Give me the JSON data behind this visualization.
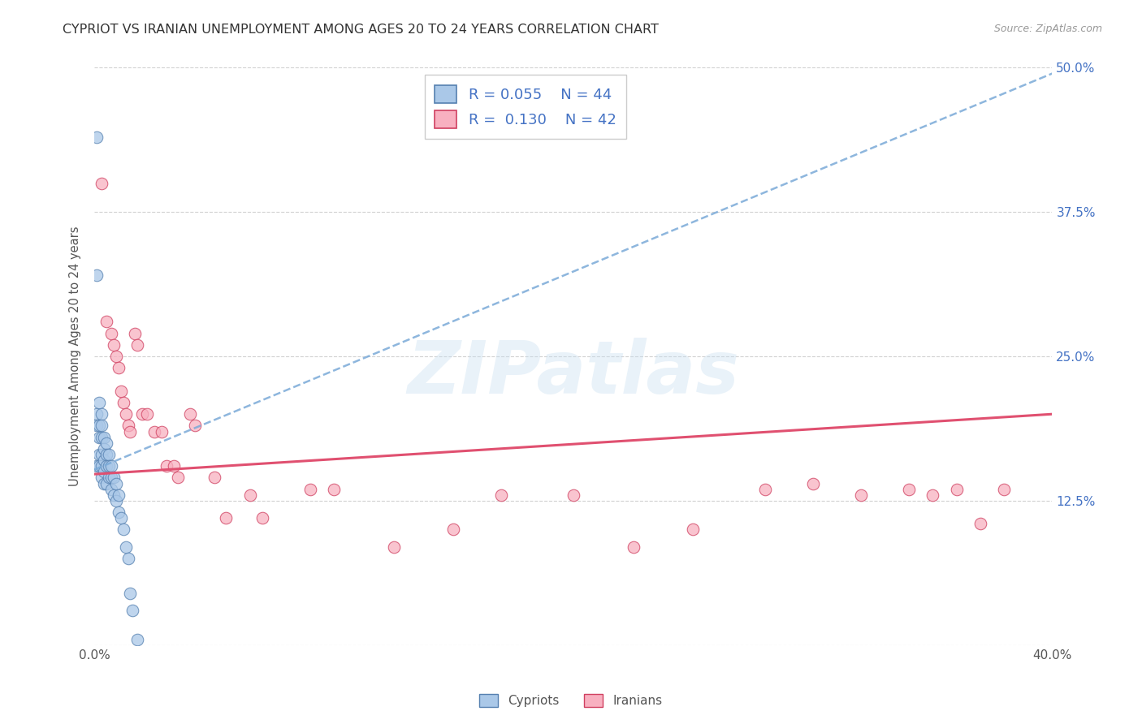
{
  "title": "CYPRIOT VS IRANIAN UNEMPLOYMENT AMONG AGES 20 TO 24 YEARS CORRELATION CHART",
  "source": "Source: ZipAtlas.com",
  "ylabel": "Unemployment Among Ages 20 to 24 years",
  "xlim": [
    0.0,
    0.4
  ],
  "ylim": [
    0.0,
    0.5
  ],
  "xtick_positions": [
    0.0,
    0.05,
    0.1,
    0.15,
    0.2,
    0.25,
    0.3,
    0.35,
    0.4
  ],
  "xtick_labels": [
    "0.0%",
    "",
    "",
    "",
    "",
    "",
    "",
    "",
    "40.0%"
  ],
  "ytick_positions": [
    0.0,
    0.125,
    0.25,
    0.375,
    0.5
  ],
  "ytick_labels_right": [
    "",
    "12.5%",
    "25.0%",
    "37.5%",
    "50.0%"
  ],
  "bg_color": "#ffffff",
  "grid_color": "#cccccc",
  "cyp_dot_face": "#aac8e8",
  "cyp_dot_edge": "#5580b0",
  "iran_dot_face": "#f8b0c0",
  "iran_dot_edge": "#d04060",
  "cyp_trend_color": "#7aaad8",
  "iran_trend_color": "#e05070",
  "right_axis_color": "#4472c4",
  "cyp_R": 0.055,
  "cyp_N": 44,
  "iran_R": 0.13,
  "iran_N": 42,
  "cyp_trend_x0": 0.0,
  "cyp_trend_y0": 0.152,
  "cyp_trend_x1": 0.4,
  "cyp_trend_y1": 0.495,
  "iran_trend_x0": 0.0,
  "iran_trend_y0": 0.148,
  "iran_trend_x1": 0.4,
  "iran_trend_y1": 0.2,
  "watermark": "ZIPatlas",
  "cyp_x": [
    0.001,
    0.001,
    0.001,
    0.001,
    0.001,
    0.002,
    0.002,
    0.002,
    0.002,
    0.002,
    0.003,
    0.003,
    0.003,
    0.003,
    0.003,
    0.003,
    0.004,
    0.004,
    0.004,
    0.004,
    0.004,
    0.005,
    0.005,
    0.005,
    0.005,
    0.006,
    0.006,
    0.006,
    0.007,
    0.007,
    0.007,
    0.008,
    0.008,
    0.009,
    0.009,
    0.01,
    0.01,
    0.011,
    0.012,
    0.013,
    0.014,
    0.015,
    0.016,
    0.018
  ],
  "cyp_y": [
    0.44,
    0.32,
    0.2,
    0.19,
    0.155,
    0.21,
    0.19,
    0.18,
    0.165,
    0.155,
    0.2,
    0.19,
    0.18,
    0.165,
    0.155,
    0.145,
    0.18,
    0.17,
    0.16,
    0.15,
    0.14,
    0.175,
    0.165,
    0.155,
    0.14,
    0.165,
    0.155,
    0.145,
    0.155,
    0.145,
    0.135,
    0.145,
    0.13,
    0.14,
    0.125,
    0.13,
    0.115,
    0.11,
    0.1,
    0.085,
    0.075,
    0.045,
    0.03,
    0.005
  ],
  "iran_x": [
    0.003,
    0.005,
    0.007,
    0.008,
    0.009,
    0.01,
    0.011,
    0.012,
    0.013,
    0.014,
    0.015,
    0.017,
    0.018,
    0.02,
    0.022,
    0.025,
    0.028,
    0.03,
    0.033,
    0.035,
    0.04,
    0.042,
    0.05,
    0.055,
    0.065,
    0.07,
    0.09,
    0.1,
    0.125,
    0.15,
    0.17,
    0.2,
    0.225,
    0.25,
    0.28,
    0.3,
    0.32,
    0.34,
    0.35,
    0.36,
    0.37,
    0.38
  ],
  "iran_y": [
    0.4,
    0.28,
    0.27,
    0.26,
    0.25,
    0.24,
    0.22,
    0.21,
    0.2,
    0.19,
    0.185,
    0.27,
    0.26,
    0.2,
    0.2,
    0.185,
    0.185,
    0.155,
    0.155,
    0.145,
    0.2,
    0.19,
    0.145,
    0.11,
    0.13,
    0.11,
    0.135,
    0.135,
    0.085,
    0.1,
    0.13,
    0.13,
    0.085,
    0.1,
    0.135,
    0.14,
    0.13,
    0.135,
    0.13,
    0.135,
    0.105,
    0.135
  ]
}
